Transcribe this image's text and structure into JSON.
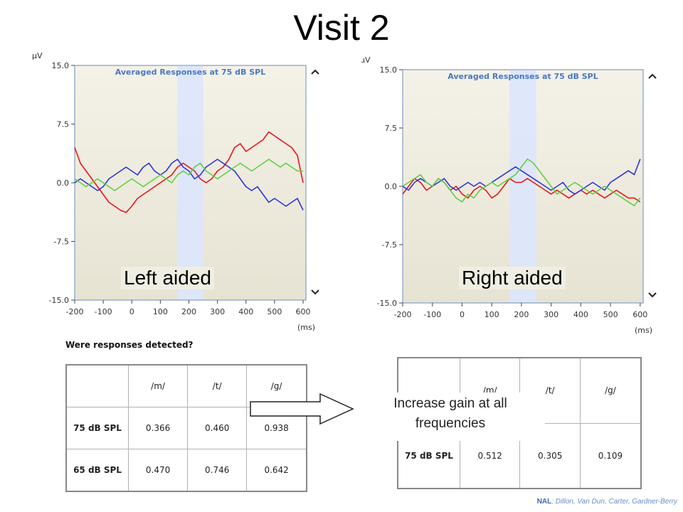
{
  "title": "Visit 2",
  "chart_data": [
    {
      "type": "line",
      "title": "Averaged Responses at 75 dB SPL",
      "caption": "Left aided",
      "ylabel": "µV",
      "xlabel": "(ms)",
      "xlim": [
        -200,
        610
      ],
      "ylim": [
        -15,
        15
      ],
      "xticks": [
        "-200",
        "-100",
        "0",
        "100",
        "200",
        "300",
        "400",
        "500",
        "600"
      ],
      "yticks": [
        "15.0",
        "7.5",
        "0.0",
        "-7.5",
        "-15.0"
      ],
      "highlight": [
        160,
        250
      ],
      "series": [
        {
          "color": "#e8161a",
          "x": [
            -200,
            -180,
            -160,
            -140,
            -120,
            -100,
            -80,
            -60,
            -40,
            -20,
            0,
            20,
            40,
            60,
            80,
            100,
            120,
            140,
            160,
            180,
            200,
            220,
            240,
            260,
            280,
            300,
            320,
            340,
            360,
            380,
            400,
            420,
            440,
            460,
            480,
            500,
            520,
            540,
            560,
            580,
            600
          ],
          "y": [
            4.5,
            2.5,
            1.5,
            0.5,
            -0.5,
            -1.5,
            -2.5,
            -3.0,
            -3.5,
            -3.8,
            -3.0,
            -2.0,
            -1.5,
            -1.0,
            -0.5,
            0.0,
            0.5,
            1.0,
            2.0,
            2.5,
            2.0,
            1.5,
            0.5,
            0.0,
            0.5,
            1.5,
            2.0,
            3.0,
            4.5,
            5.0,
            4.0,
            4.5,
            5.0,
            5.5,
            6.5,
            6.0,
            5.5,
            5.0,
            4.5,
            3.5,
            0.0
          ]
        },
        {
          "color": "#2c35d8",
          "x": [
            -200,
            -180,
            -160,
            -140,
            -120,
            -100,
            -80,
            -60,
            -40,
            -20,
            0,
            20,
            40,
            60,
            80,
            100,
            120,
            140,
            160,
            180,
            200,
            220,
            240,
            260,
            280,
            300,
            320,
            340,
            360,
            380,
            400,
            420,
            440,
            460,
            480,
            500,
            520,
            540,
            560,
            580,
            600
          ],
          "y": [
            0.0,
            0.5,
            0.0,
            -0.5,
            -1.0,
            -0.5,
            0.5,
            1.0,
            1.5,
            2.0,
            1.5,
            1.0,
            2.0,
            2.5,
            1.5,
            1.0,
            1.5,
            2.5,
            3.0,
            2.0,
            1.5,
            0.5,
            1.0,
            2.0,
            2.5,
            3.0,
            2.5,
            2.0,
            1.5,
            0.5,
            -0.5,
            -1.0,
            -0.5,
            -1.5,
            -2.5,
            -2.0,
            -2.5,
            -3.0,
            -2.5,
            -2.0,
            -3.5
          ]
        },
        {
          "color": "#5fcf44",
          "x": [
            -200,
            -180,
            -160,
            -140,
            -120,
            -100,
            -80,
            -60,
            -40,
            -20,
            0,
            20,
            40,
            60,
            80,
            100,
            120,
            140,
            160,
            180,
            200,
            220,
            240,
            260,
            280,
            300,
            320,
            340,
            360,
            380,
            400,
            420,
            440,
            460,
            480,
            500,
            520,
            540,
            560,
            580,
            600
          ],
          "y": [
            0.5,
            0.0,
            -0.5,
            0.0,
            0.5,
            0.0,
            -0.5,
            -1.0,
            -0.5,
            0.0,
            0.5,
            0.0,
            -0.5,
            0.0,
            0.5,
            1.0,
            0.5,
            0.0,
            1.0,
            1.5,
            1.0,
            2.0,
            2.5,
            1.5,
            1.0,
            0.5,
            1.0,
            1.5,
            2.0,
            2.5,
            2.0,
            1.5,
            2.0,
            2.5,
            3.0,
            2.5,
            2.0,
            2.5,
            2.0,
            1.5,
            1.5
          ]
        }
      ]
    },
    {
      "type": "line",
      "title": "Averaged Responses at 75 dB SPL",
      "caption": "Right aided",
      "ylabel": "µV",
      "xlabel": "(ms)",
      "xlim": [
        -200,
        610
      ],
      "ylim": [
        -15,
        15
      ],
      "xticks": [
        "-200",
        "-100",
        "0",
        "100",
        "200",
        "300",
        "400",
        "500",
        "600"
      ],
      "yticks": [
        "15.0",
        "7.5",
        "0.0",
        "-7.5",
        "-15.0"
      ],
      "highlight": [
        160,
        250
      ],
      "series": [
        {
          "color": "#e8161a",
          "x": [
            -200,
            -180,
            -160,
            -140,
            -120,
            -100,
            -80,
            -60,
            -40,
            -20,
            0,
            20,
            40,
            60,
            80,
            100,
            120,
            140,
            160,
            180,
            200,
            220,
            240,
            260,
            280,
            300,
            320,
            340,
            360,
            380,
            400,
            420,
            440,
            460,
            480,
            500,
            520,
            540,
            560,
            580,
            600
          ],
          "y": [
            -1.0,
            0.0,
            1.0,
            0.5,
            -0.5,
            0.0,
            1.0,
            0.5,
            -0.5,
            0.0,
            -1.0,
            -1.5,
            -0.5,
            0.0,
            -0.5,
            -1.5,
            -1.0,
            0.0,
            1.0,
            0.5,
            0.5,
            1.0,
            0.5,
            0.0,
            -0.5,
            -1.0,
            -0.5,
            -1.0,
            -1.5,
            -1.0,
            -0.5,
            -1.0,
            -0.5,
            -1.0,
            -1.5,
            -1.0,
            -0.5,
            -1.0,
            -1.5,
            -1.5,
            -2.0
          ]
        },
        {
          "color": "#2c35d8",
          "x": [
            -200,
            -180,
            -160,
            -140,
            -120,
            -100,
            -80,
            -60,
            -40,
            -20,
            0,
            20,
            40,
            60,
            80,
            100,
            120,
            140,
            160,
            180,
            200,
            220,
            240,
            260,
            280,
            300,
            320,
            340,
            360,
            380,
            400,
            420,
            440,
            460,
            480,
            500,
            520,
            540,
            560,
            580,
            600
          ],
          "y": [
            0.0,
            -0.5,
            0.5,
            1.0,
            0.5,
            0.0,
            0.5,
            1.0,
            0.0,
            -0.5,
            0.0,
            0.5,
            0.0,
            0.5,
            0.0,
            0.5,
            1.0,
            1.5,
            2.0,
            2.5,
            2.0,
            1.5,
            1.0,
            0.5,
            0.0,
            -0.5,
            0.0,
            0.5,
            -0.5,
            -1.0,
            -0.5,
            0.0,
            0.5,
            0.0,
            -0.5,
            0.5,
            1.0,
            1.5,
            2.0,
            1.5,
            3.5
          ]
        },
        {
          "color": "#5fcf44",
          "x": [
            -200,
            -180,
            -160,
            -140,
            -120,
            -100,
            -80,
            -60,
            -40,
            -20,
            0,
            20,
            40,
            60,
            80,
            100,
            120,
            140,
            160,
            180,
            200,
            220,
            240,
            260,
            280,
            300,
            320,
            340,
            360,
            380,
            400,
            420,
            440,
            460,
            480,
            500,
            520,
            540,
            560,
            580,
            600
          ],
          "y": [
            0.0,
            0.5,
            1.0,
            1.5,
            0.5,
            0.0,
            1.0,
            0.5,
            -0.5,
            -1.5,
            -2.0,
            -1.0,
            -1.5,
            -0.5,
            0.0,
            0.5,
            0.0,
            0.5,
            1.0,
            1.5,
            2.5,
            3.5,
            3.0,
            2.0,
            1.0,
            0.0,
            -1.0,
            -0.5,
            0.0,
            0.5,
            0.0,
            -0.5,
            -1.0,
            -0.5,
            0.0,
            -0.5,
            -1.0,
            -1.5,
            -2.0,
            -2.5,
            -1.5
          ]
        }
      ]
    }
  ],
  "left_table": {
    "question": "Were responses detected?",
    "headers": [
      "/m/",
      "/t/",
      "/g/"
    ],
    "rows": [
      {
        "label": "75 dB SPL",
        "values": [
          "0.366",
          "0.460",
          "0.938"
        ]
      },
      {
        "label": "65 dB SPL",
        "values": [
          "0.470",
          "0.746",
          "0.642"
        ]
      }
    ]
  },
  "right_table": {
    "headers": [
      "/m/",
      "/t/",
      "/g/"
    ],
    "rows": [
      {
        "label": "75 dB SPL",
        "values": [
          "0.512",
          "0.305",
          "0.109"
        ]
      }
    ]
  },
  "annotation": {
    "line1": "Increase gain at all",
    "line2": "frequencies"
  },
  "credits": {
    "org": "NAL",
    "authors": ": Dillon, Van Dun, Carter, Gardner-Berry"
  }
}
